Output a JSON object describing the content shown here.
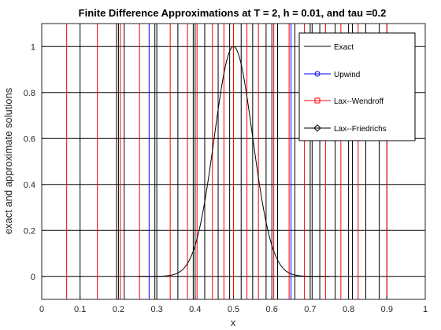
{
  "chart_data": {
    "type": "line",
    "title": "Finite Difference Approximations at T = 2, h = 0.01, and tau =0.2",
    "xlabel": "x",
    "ylabel": "exact and approximate solutions",
    "xlim": [
      0,
      1
    ],
    "ylim": [
      -0.1,
      1.1
    ],
    "xticks": [
      "0",
      "0.1",
      "0.2",
      "0.3",
      "0.4",
      "0.5",
      "0.6",
      "0.7",
      "0.8",
      "0.9",
      "1"
    ],
    "yticks": [
      "0",
      "0.2",
      "0.4",
      "0.6",
      "0.8",
      "1"
    ],
    "grid": true,
    "legend_position": "top-right",
    "series": [
      {
        "name": "Exact",
        "color": "#000000",
        "marker": "none",
        "kind": "curve",
        "x_range": [
          0.25,
          0.75
        ],
        "center": 0.5,
        "peak": 1.0,
        "sigma": 0.05
      },
      {
        "name": "Upwind",
        "color": "#0000ff",
        "marker": "circle",
        "kind": "vertical-lines",
        "x": [
          0.28,
          0.65
        ]
      },
      {
        "name": "Lax--Wendroff",
        "color": "#ff0000",
        "marker": "square",
        "kind": "vertical-lines",
        "x": [
          0.065,
          0.145,
          0.205,
          0.255,
          0.335,
          0.38,
          0.405,
          0.445,
          0.475,
          0.5,
          0.535,
          0.565,
          0.605,
          0.645,
          0.685,
          0.74,
          0.78,
          0.825,
          0.9
        ]
      },
      {
        "name": "Lax--Friedrichs",
        "color": "#000000",
        "marker": "diamond",
        "kind": "vertical-lines",
        "x": [
          0.195,
          0.215,
          0.295,
          0.355,
          0.395,
          0.425,
          0.46,
          0.49,
          0.52,
          0.55,
          0.585,
          0.615,
          0.66,
          0.705,
          0.725,
          0.765,
          0.81,
          0.845,
          0.88
        ]
      }
    ]
  }
}
